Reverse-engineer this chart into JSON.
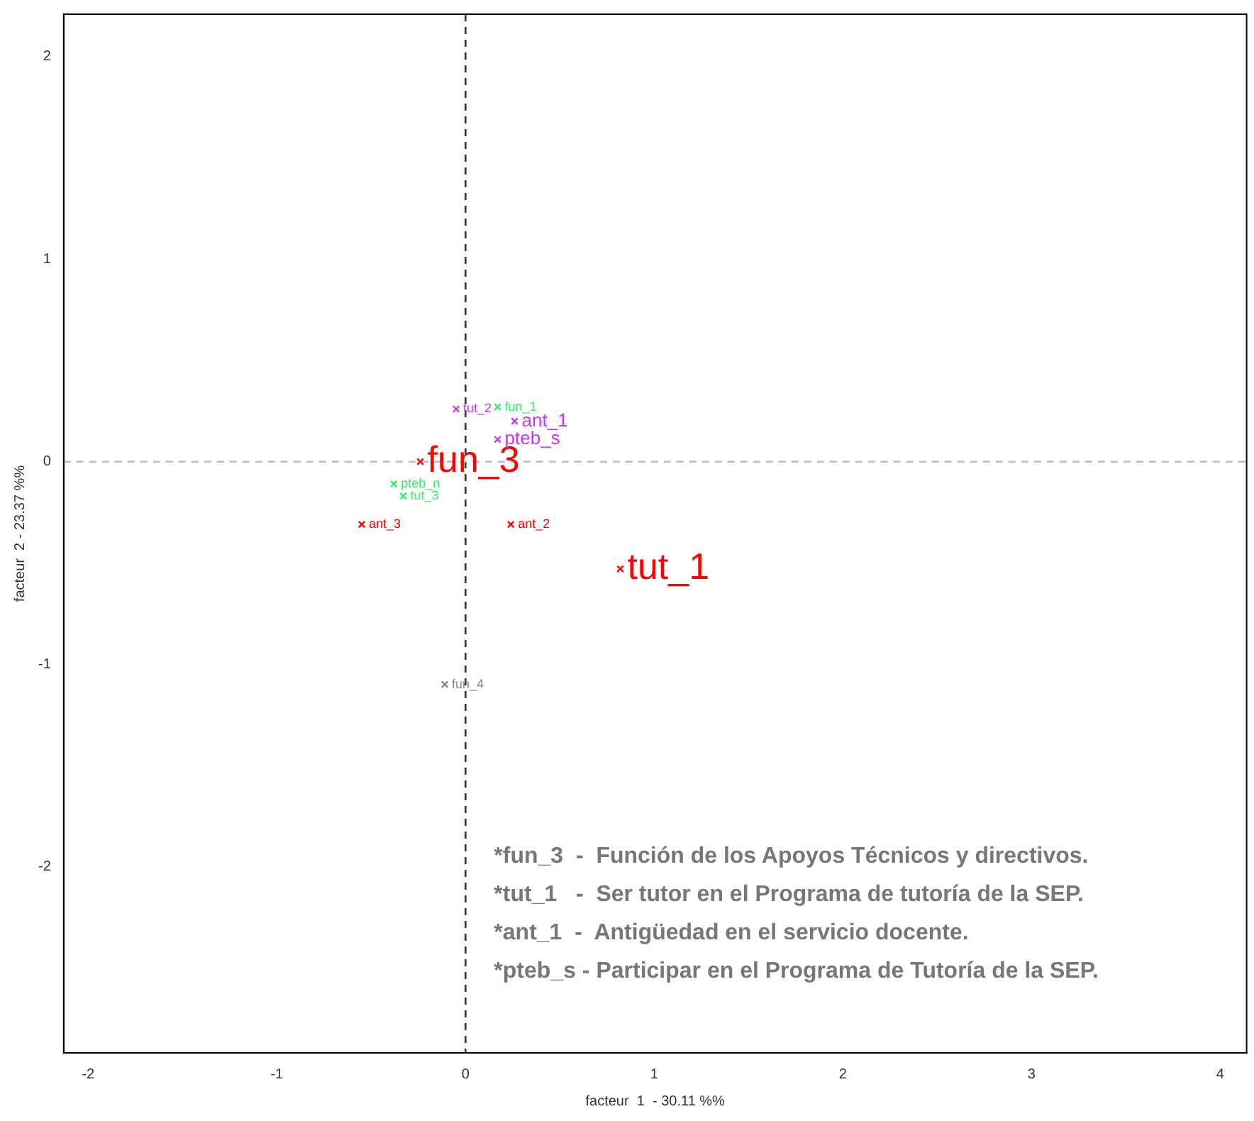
{
  "chart_data": {
    "type": "scatter",
    "xlabel": "facteur  1  - 30.11 %%",
    "ylabel": "facteur  2 - 23.37 %%",
    "xlim": [
      -2.13,
      4.14
    ],
    "ylim": [
      -2.92,
      2.21
    ],
    "xticks": [
      -2,
      -1,
      0,
      1,
      2,
      3,
      4
    ],
    "yticks": [
      -2,
      -1,
      0,
      1,
      2
    ],
    "grid": false,
    "legend": false,
    "marker": "cross",
    "series": [
      {
        "name": "fun_3",
        "color": "#ff0000",
        "x": [
          -0.24
        ],
        "values": [
          0.0
        ]
      },
      {
        "name": "tut_1",
        "color": "#ff0000",
        "x": [
          0.82
        ],
        "values": [
          -0.53
        ]
      },
      {
        "name": "ant_1",
        "color": "#cc33ff",
        "x": [
          0.26
        ],
        "values": [
          0.2
        ]
      },
      {
        "name": "pteb_s",
        "color": "#cc33ff",
        "x": [
          0.17
        ],
        "values": [
          0.11
        ]
      },
      {
        "name": "tut_2",
        "color": "#cc33ff",
        "x": [
          -0.05
        ],
        "values": [
          0.26
        ]
      },
      {
        "name": "fun_1",
        "color": "#33ee66",
        "x": [
          0.17
        ],
        "values": [
          0.27
        ]
      },
      {
        "name": "pteb_n",
        "color": "#33ee66",
        "x": [
          -0.38
        ],
        "values": [
          -0.11
        ]
      },
      {
        "name": "tut_3",
        "color": "#33ee66",
        "x": [
          -0.33
        ],
        "values": [
          -0.17
        ]
      },
      {
        "name": "ant_3",
        "color": "#ff0000",
        "x": [
          -0.55
        ],
        "values": [
          -0.31
        ]
      },
      {
        "name": "ant_2",
        "color": "#ff0000",
        "x": [
          0.24
        ],
        "values": [
          -0.31
        ]
      },
      {
        "name": "fun_4",
        "color": "#888888",
        "x": [
          -0.11
        ],
        "values": [
          -1.1
        ]
      }
    ],
    "ref_lines": [
      {
        "axis": "x",
        "value": 0,
        "color": "#333333",
        "line_style": "dashed"
      },
      {
        "axis": "y",
        "value": 0,
        "color": "#bbbbbb",
        "line_style": "dashed"
      }
    ],
    "annotations": [
      "*fun_3  -  Función de los Apoyos Técnicos y directivos.",
      "*tut_1   -  Ser tutor en el Programa de tutoría de la SEP.",
      "*ant_1  -  Antigüedad en el servicio docente.",
      "*pteb_s - Participar en el Programa de Tutoría de la SEP."
    ]
  }
}
